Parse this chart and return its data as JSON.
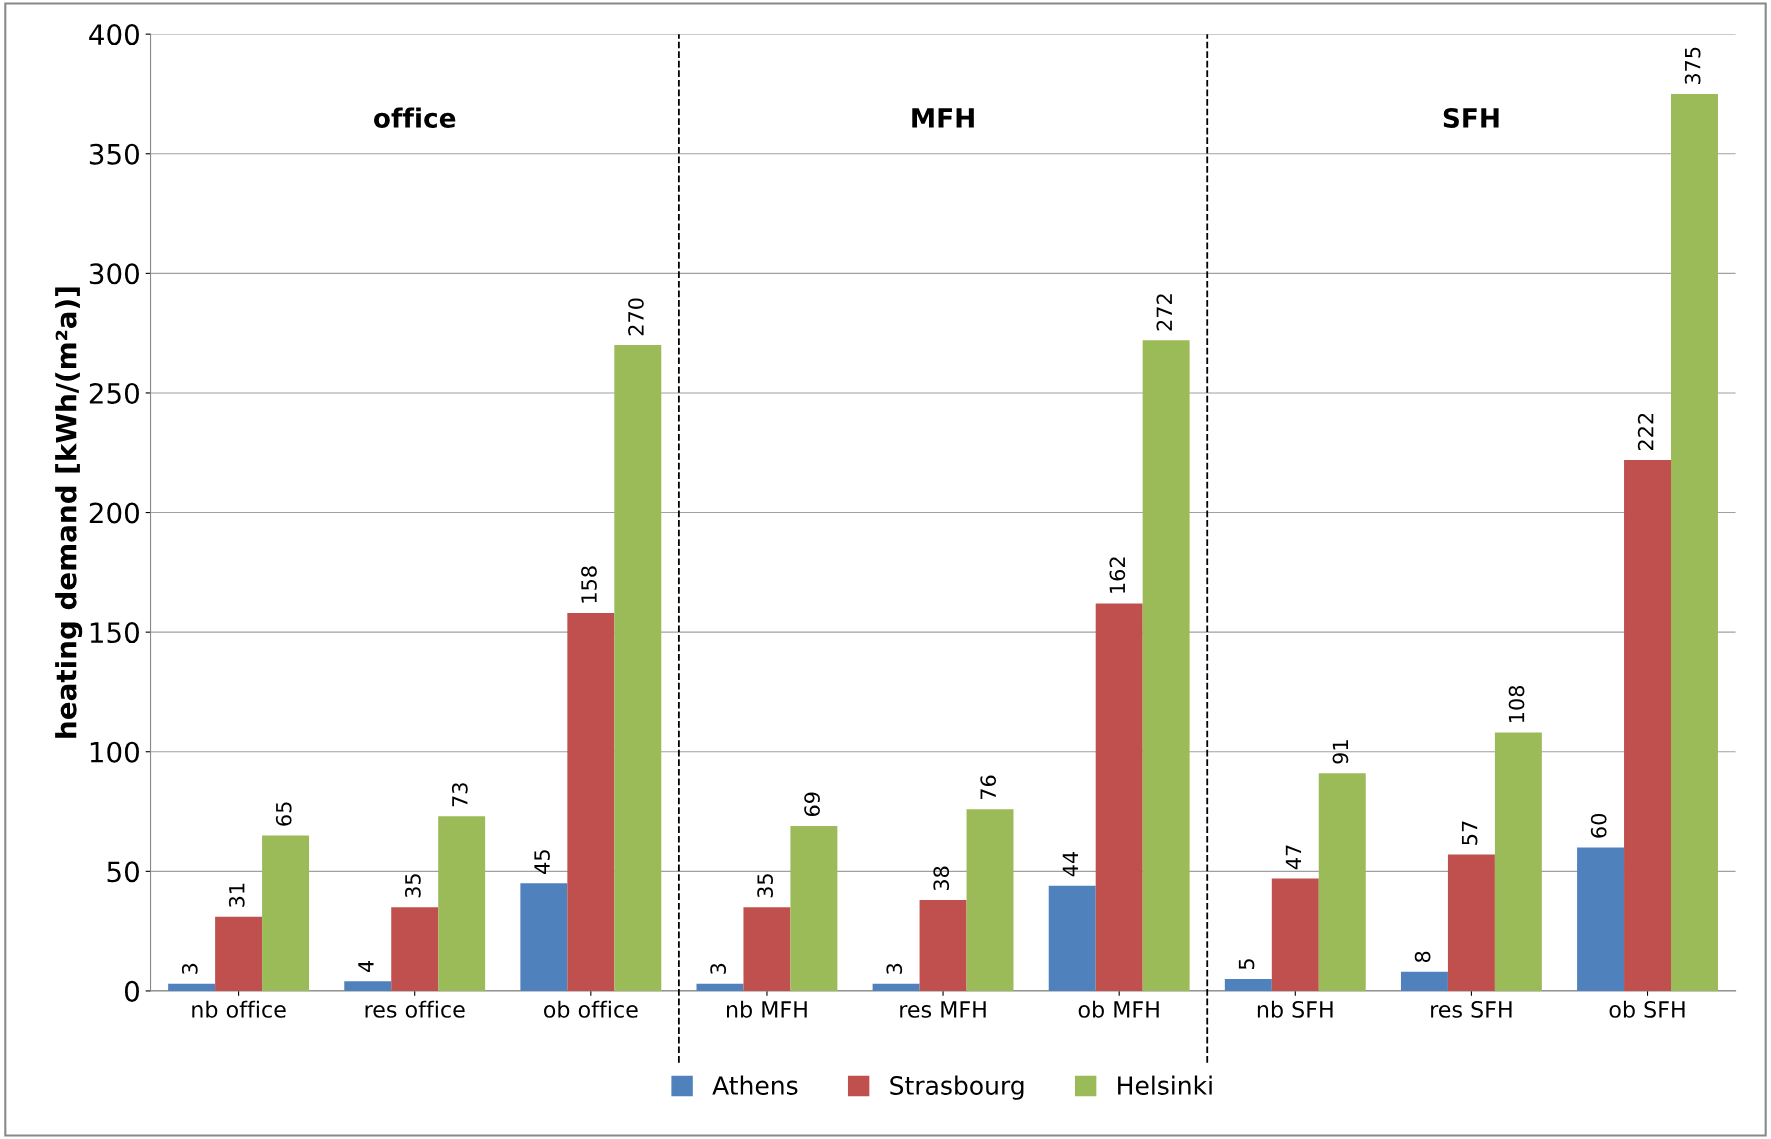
{
  "chart_data": {
    "type": "bar",
    "ylabel": "heating demand [kWh/(m²a)]",
    "categories": [
      "nb office",
      "res office",
      "ob office",
      "nb MFH",
      "res MFH",
      "ob MFH",
      "nb SFH",
      "res SFH",
      "ob SFH"
    ],
    "series": [
      {
        "name": "Athens",
        "color": "#4f81bd",
        "values": [
          3,
          4,
          45,
          3,
          3,
          44,
          5,
          8,
          60
        ]
      },
      {
        "name": "Strasbourg",
        "color": "#c0504d",
        "values": [
          31,
          35,
          158,
          35,
          38,
          162,
          47,
          57,
          222
        ]
      },
      {
        "name": "Helsinki",
        "color": "#9bbb59",
        "values": [
          65,
          73,
          270,
          69,
          76,
          272,
          91,
          108,
          375
        ]
      }
    ],
    "ylim": [
      0,
      400
    ],
    "yticks": [
      0,
      50,
      100,
      150,
      200,
      250,
      300,
      350,
      400
    ],
    "grid": "y",
    "legend": "bottom",
    "data_labels": true,
    "annotations": [
      "office",
      "MFH",
      "SFH"
    ]
  }
}
